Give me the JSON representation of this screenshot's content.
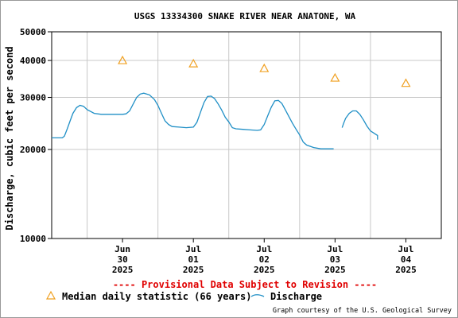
{
  "chart_data": {
    "type": "line",
    "title": "USGS 13334300 SNAKE RIVER NEAR ANATONE, WA",
    "ylabel": "Discharge, cubic feet per second",
    "xlabel": "",
    "yscale": "log",
    "ylim": [
      10000,
      50000
    ],
    "xlim": [
      -0.5,
      5.0
    ],
    "grid": true,
    "y_ticks": [
      {
        "value": 10000,
        "label": "10000"
      },
      {
        "value": 20000,
        "label": "20000"
      },
      {
        "value": 30000,
        "label": "30000"
      },
      {
        "value": 40000,
        "label": "40000"
      },
      {
        "value": 50000,
        "label": "50000"
      }
    ],
    "x_ticks": [
      {
        "value": 0.5,
        "month": "Jun",
        "day": "30",
        "year": "2025"
      },
      {
        "value": 1.5,
        "month": "Jul",
        "day": "01",
        "year": "2025"
      },
      {
        "value": 2.5,
        "month": "Jul",
        "day": "02",
        "year": "2025"
      },
      {
        "value": 3.5,
        "month": "Jul",
        "day": "03",
        "year": "2025"
      },
      {
        "value": 4.5,
        "month": "Jul",
        "day": "04",
        "year": "2025"
      }
    ],
    "day_boundaries": [
      0,
      1,
      2,
      3,
      4
    ],
    "series": [
      {
        "name": "Discharge",
        "color": "#1f8fc6",
        "segments": [
          [
            [
              -0.5,
              21900
            ],
            [
              -0.35,
              21900
            ],
            [
              -0.32,
              22200
            ],
            [
              -0.28,
              23500
            ],
            [
              -0.24,
              25000
            ],
            [
              -0.2,
              26500
            ],
            [
              -0.15,
              27700
            ],
            [
              -0.1,
              28200
            ],
            [
              -0.05,
              28000
            ],
            [
              0.0,
              27300
            ],
            [
              0.1,
              26500
            ],
            [
              0.2,
              26300
            ],
            [
              0.35,
              26300
            ],
            [
              0.5,
              26300
            ],
            [
              0.55,
              26400
            ],
            [
              0.6,
              27000
            ],
            [
              0.65,
              28500
            ],
            [
              0.7,
              30000
            ],
            [
              0.75,
              30800
            ],
            [
              0.8,
              31000
            ],
            [
              0.88,
              30600
            ],
            [
              0.95,
              29500
            ],
            [
              1.0,
              28200
            ],
            [
              1.05,
              26500
            ],
            [
              1.1,
              25000
            ],
            [
              1.15,
              24300
            ],
            [
              1.2,
              23900
            ],
            [
              1.3,
              23800
            ],
            [
              1.4,
              23700
            ],
            [
              1.5,
              23800
            ],
            [
              1.55,
              24700
            ],
            [
              1.6,
              26700
            ],
            [
              1.65,
              28800
            ],
            [
              1.7,
              30200
            ],
            [
              1.75,
              30300
            ],
            [
              1.8,
              29700
            ],
            [
              1.85,
              28500
            ],
            [
              1.9,
              27200
            ],
            [
              1.95,
              25700
            ],
            [
              2.0,
              24800
            ],
            [
              2.05,
              23700
            ],
            [
              2.1,
              23500
            ],
            [
              2.2,
              23400
            ],
            [
              2.3,
              23300
            ],
            [
              2.4,
              23200
            ],
            [
              2.45,
              23300
            ],
            [
              2.5,
              24300
            ],
            [
              2.55,
              26000
            ],
            [
              2.6,
              27800
            ],
            [
              2.65,
              29200
            ],
            [
              2.7,
              29300
            ],
            [
              2.75,
              28600
            ],
            [
              2.8,
              27200
            ],
            [
              2.85,
              25800
            ],
            [
              2.9,
              24500
            ],
            [
              2.95,
              23400
            ],
            [
              3.0,
              22400
            ],
            [
              3.05,
              21200
            ],
            [
              3.1,
              20700
            ],
            [
              3.2,
              20300
            ],
            [
              3.3,
              20100
            ],
            [
              3.4,
              20100
            ],
            [
              3.48,
              20100
            ]
          ],
          [
            [
              3.6,
              23700
            ],
            [
              3.62,
              24500
            ],
            [
              3.65,
              25500
            ],
            [
              3.7,
              26500
            ],
            [
              3.75,
              27000
            ],
            [
              3.8,
              27000
            ],
            [
              3.85,
              26300
            ],
            [
              3.9,
              25200
            ],
            [
              3.95,
              24000
            ],
            [
              4.0,
              23100
            ],
            [
              4.05,
              22700
            ],
            [
              4.1,
              22300
            ],
            [
              4.1,
              21600
            ]
          ]
        ]
      },
      {
        "name": "Median daily statistic (66 years)",
        "color": "#f0a020",
        "marker": "triangle",
        "points": [
          [
            0.5,
            40000
          ],
          [
            1.5,
            39000
          ],
          [
            2.5,
            37600
          ],
          [
            3.5,
            34900
          ],
          [
            4.5,
            33500
          ]
        ]
      }
    ]
  },
  "notice": "---- Provisional Data Subject to Revision ----",
  "legend": {
    "median_label": "Median daily statistic (66 years)",
    "discharge_label": "Discharge"
  },
  "credit": "Graph courtesy of the U.S. Geological Survey"
}
